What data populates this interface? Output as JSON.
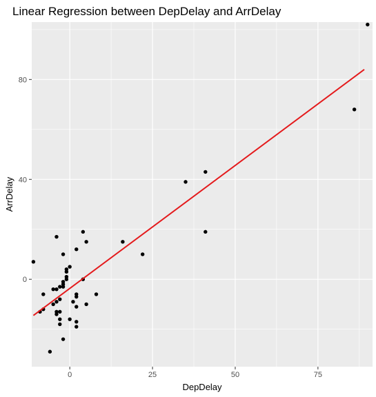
{
  "chart_data": {
    "type": "scatter",
    "title": "Linear Regression between DepDelay and ArrDelay",
    "xlabel": "DepDelay",
    "ylabel": "ArrDelay",
    "xlim": [
      -11.5,
      91.5
    ],
    "ylim": [
      -35,
      103
    ],
    "x_ticks": [
      0,
      25,
      50,
      75
    ],
    "y_ticks": [
      0,
      40,
      80
    ],
    "grid": true,
    "background": "#EBEBEB",
    "gridline_color": "#FFFFFF",
    "point_color": "#000000",
    "line_color": "#E41A1C",
    "points": [
      {
        "x": -11,
        "y": 7
      },
      {
        "x": -9,
        "y": -13
      },
      {
        "x": -8,
        "y": -12
      },
      {
        "x": -8,
        "y": -6
      },
      {
        "x": -6,
        "y": -29
      },
      {
        "x": -5,
        "y": -4
      },
      {
        "x": -5,
        "y": -10
      },
      {
        "x": -4,
        "y": -9
      },
      {
        "x": -4,
        "y": -4
      },
      {
        "x": -4,
        "y": -14
      },
      {
        "x": -4,
        "y": -13
      },
      {
        "x": -4,
        "y": 17
      },
      {
        "x": -3,
        "y": -8
      },
      {
        "x": -3,
        "y": -3
      },
      {
        "x": -3,
        "y": -16
      },
      {
        "x": -3,
        "y": -18
      },
      {
        "x": -3,
        "y": -13
      },
      {
        "x": -2,
        "y": -24
      },
      {
        "x": -2,
        "y": -3
      },
      {
        "x": -2,
        "y": -2
      },
      {
        "x": -2,
        "y": -1
      },
      {
        "x": -2,
        "y": 10
      },
      {
        "x": -1,
        "y": 0
      },
      {
        "x": -1,
        "y": 1
      },
      {
        "x": -1,
        "y": 3
      },
      {
        "x": -1,
        "y": 4
      },
      {
        "x": 0,
        "y": -16
      },
      {
        "x": 0,
        "y": 5
      },
      {
        "x": 1,
        "y": -9
      },
      {
        "x": 2,
        "y": -11
      },
      {
        "x": 2,
        "y": -7
      },
      {
        "x": 2,
        "y": -6
      },
      {
        "x": 2,
        "y": -17
      },
      {
        "x": 2,
        "y": -19
      },
      {
        "x": 2,
        "y": 12
      },
      {
        "x": 4,
        "y": 0
      },
      {
        "x": 4,
        "y": 19
      },
      {
        "x": 5,
        "y": -10
      },
      {
        "x": 5,
        "y": 15
      },
      {
        "x": 8,
        "y": -6
      },
      {
        "x": 16,
        "y": 15
      },
      {
        "x": 22,
        "y": 10
      },
      {
        "x": 35,
        "y": 39
      },
      {
        "x": 41,
        "y": 43
      },
      {
        "x": 41,
        "y": 19
      },
      {
        "x": 86,
        "y": 68
      },
      {
        "x": 90,
        "y": 102
      }
    ],
    "regression_line": {
      "x": [
        -11,
        89
      ],
      "y": [
        -14.5,
        84.0
      ]
    }
  }
}
